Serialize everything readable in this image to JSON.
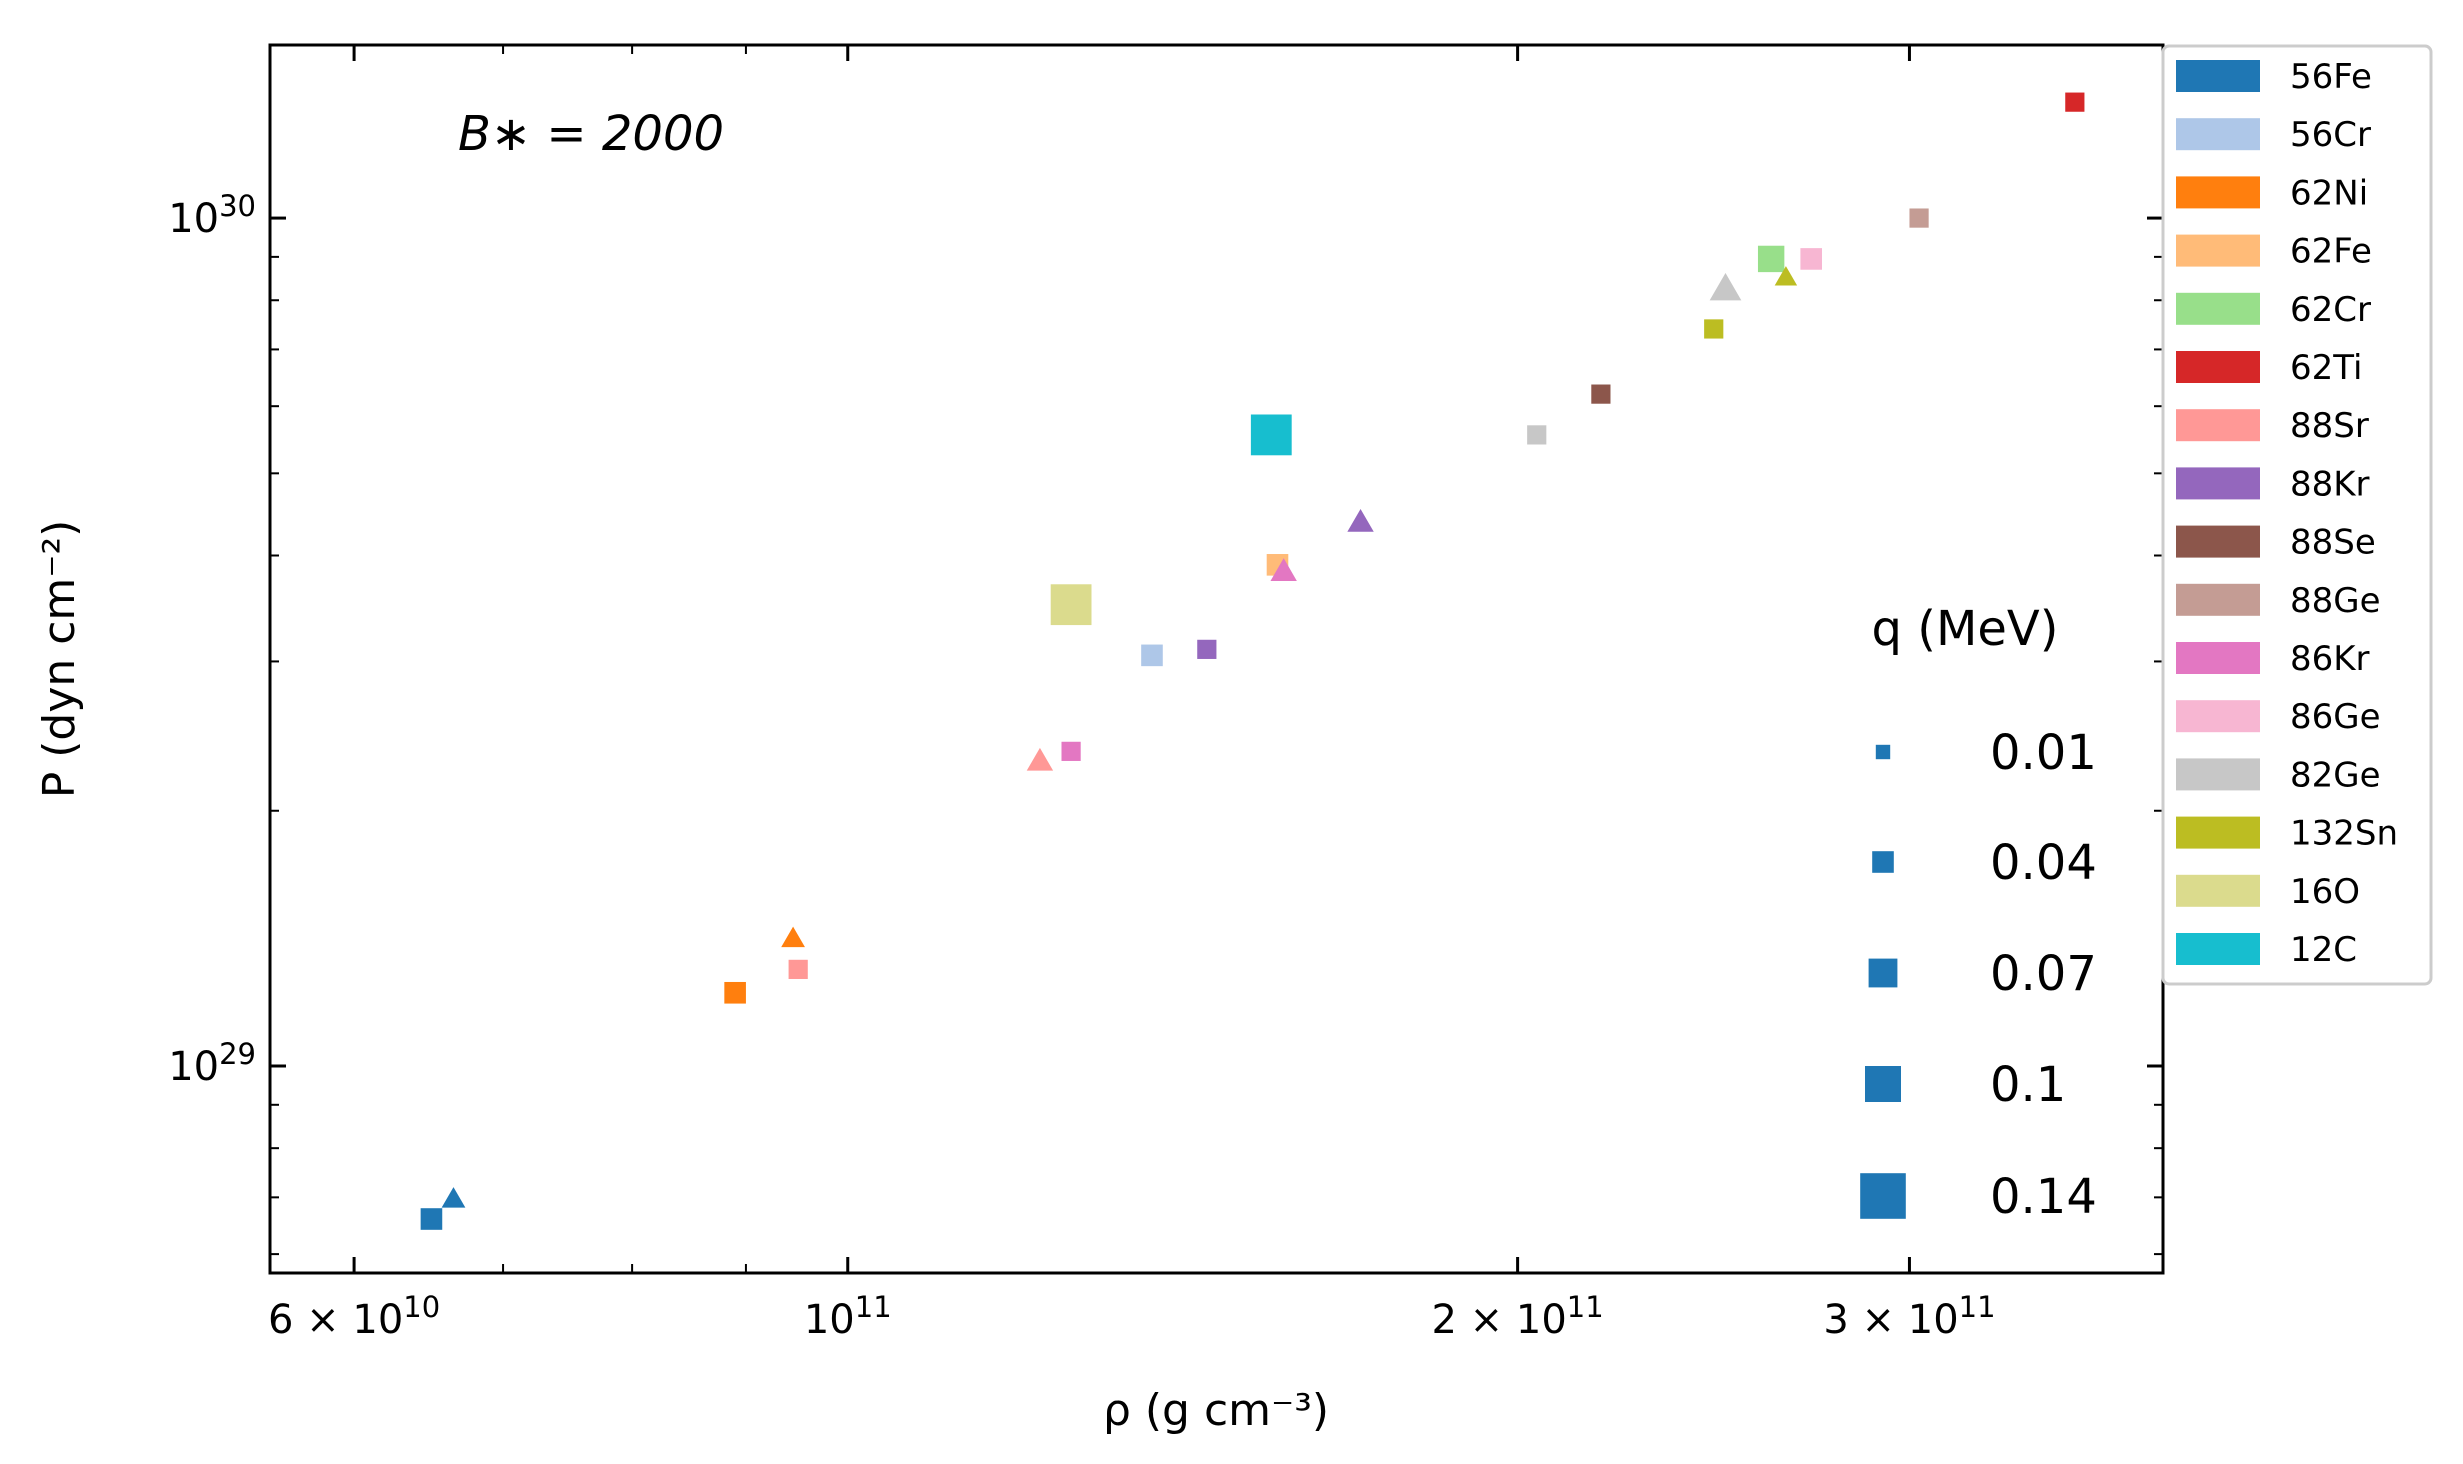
{
  "chart_data": {
    "type": "scatter",
    "title": "",
    "xlabel": "ρ (g cm⁻³)",
    "ylabel": "P (dyn cm⁻²)",
    "xscale": "log",
    "yscale": "log",
    "xlim": [
      55000000000.0,
      390000000000.0
    ],
    "ylim": [
      5.7e+28,
      1.6e+30
    ],
    "grid": false,
    "annotation": "B∗ = 2000",
    "xticks": [
      {
        "value": 60000000000.0,
        "label_main": "6 × 10",
        "label_sup": "10"
      },
      {
        "value": 100000000000.0,
        "label_main": "10",
        "label_sup": "11"
      },
      {
        "value": 200000000000.0,
        "label_main": "2 × 10",
        "label_sup": "11"
      },
      {
        "value": 300000000000.0,
        "label_main": "3 × 10",
        "label_sup": "11"
      }
    ],
    "yticks": [
      {
        "value": 1e+29,
        "label_main": "10",
        "label_sup": "29"
      },
      {
        "value": 1e+30,
        "label_main": "10",
        "label_sup": "30"
      }
    ],
    "series_legend": [
      {
        "name": "56Fe",
        "color": "#1f77b4"
      },
      {
        "name": "56Cr",
        "color": "#aec7e8"
      },
      {
        "name": "62Ni",
        "color": "#ff7f0e"
      },
      {
        "name": "62Fe",
        "color": "#ffbb78"
      },
      {
        "name": "62Cr",
        "color": "#98df8a"
      },
      {
        "name": "62Ti",
        "color": "#d62728"
      },
      {
        "name": "88Sr",
        "color": "#ff9896"
      },
      {
        "name": "88Kr",
        "color": "#9467bd"
      },
      {
        "name": "88Se",
        "color": "#8c564b"
      },
      {
        "name": "88Ge",
        "color": "#c49c94"
      },
      {
        "name": "86Kr",
        "color": "#e377c2"
      },
      {
        "name": "86Ge",
        "color": "#f7b6d2"
      },
      {
        "name": "82Ge",
        "color": "#c7c7c7"
      },
      {
        "name": "132Sn",
        "color": "#bcbd22"
      },
      {
        "name": "16O",
        "color": "#dbdb8d"
      },
      {
        "name": "12C",
        "color": "#17becf"
      }
    ],
    "size_legend": {
      "title": "q (MeV)",
      "items": [
        {
          "label": "0.01",
          "q": 0.01
        },
        {
          "label": "0.04",
          "q": 0.04
        },
        {
          "label": "0.07",
          "q": 0.07
        },
        {
          "label": "0.1",
          "q": 0.1
        },
        {
          "label": "0.14",
          "q": 0.14
        }
      ]
    },
    "points": [
      {
        "name": "56Fe",
        "marker": "square",
        "rho": 65000000000.0,
        "P": 6.6e+28,
        "q": 0.04
      },
      {
        "name": "56Fe",
        "marker": "triangle",
        "rho": 66500000000.0,
        "P": 7e+28,
        "q": 0.04
      },
      {
        "name": "62Ni",
        "marker": "square",
        "rho": 89000000000.0,
        "P": 1.22e+29,
        "q": 0.04
      },
      {
        "name": "62Ni",
        "marker": "triangle",
        "rho": 94500000000.0,
        "P": 1.42e+29,
        "q": 0.04
      },
      {
        "name": "88Sr",
        "marker": "square",
        "rho": 95000000000.0,
        "P": 1.3e+29,
        "q": 0.03
      },
      {
        "name": "88Sr",
        "marker": "triangle",
        "rho": 122000000000.0,
        "P": 2.3e+29,
        "q": 0.05
      },
      {
        "name": "86Kr",
        "marker": "square",
        "rho": 126000000000.0,
        "P": 2.35e+29,
        "q": 0.03
      },
      {
        "name": "16O",
        "marker": "square",
        "rho": 126000000000.0,
        "P": 3.5e+29,
        "q": 0.12
      },
      {
        "name": "56Cr",
        "marker": "square",
        "rho": 137000000000.0,
        "P": 3.05e+29,
        "q": 0.04
      },
      {
        "name": "88Kr",
        "marker": "square",
        "rho": 145000000000.0,
        "P": 3.1e+29,
        "q": 0.03
      },
      {
        "name": "12C",
        "marker": "square",
        "rho": 155000000000.0,
        "P": 5.55e+29,
        "q": 0.12
      },
      {
        "name": "62Fe",
        "marker": "square",
        "rho": 156000000000.0,
        "P": 3.9e+29,
        "q": 0.04
      },
      {
        "name": "86Kr",
        "marker": "triangle",
        "rho": 157000000000.0,
        "P": 3.85e+29,
        "q": 0.05
      },
      {
        "name": "88Kr",
        "marker": "triangle",
        "rho": 170000000000.0,
        "P": 4.4e+29,
        "q": 0.05
      },
      {
        "name": "82Ge",
        "marker": "square",
        "rho": 204000000000.0,
        "P": 5.55e+29,
        "q": 0.03
      },
      {
        "name": "88Se",
        "marker": "square",
        "rho": 218000000000.0,
        "P": 6.2e+29,
        "q": 0.03
      },
      {
        "name": "132Sn",
        "marker": "square",
        "rho": 245000000000.0,
        "P": 7.4e+29,
        "q": 0.03
      },
      {
        "name": "82Ge",
        "marker": "triangle",
        "rho": 248000000000.0,
        "P": 8.3e+29,
        "q": 0.07
      },
      {
        "name": "62Cr",
        "marker": "square",
        "rho": 260000000000.0,
        "P": 8.95e+29,
        "q": 0.06
      },
      {
        "name": "132Sn",
        "marker": "triangle",
        "rho": 264000000000.0,
        "P": 8.55e+29,
        "q": 0.035
      },
      {
        "name": "86Ge",
        "marker": "square",
        "rho": 271000000000.0,
        "P": 8.95e+29,
        "q": 0.04
      },
      {
        "name": "88Ge",
        "marker": "square",
        "rho": 303000000000.0,
        "P": 1e+30,
        "q": 0.03
      },
      {
        "name": "62Ti",
        "marker": "square",
        "rho": 356000000000.0,
        "P": 1.37e+30,
        "q": 0.03
      }
    ]
  }
}
